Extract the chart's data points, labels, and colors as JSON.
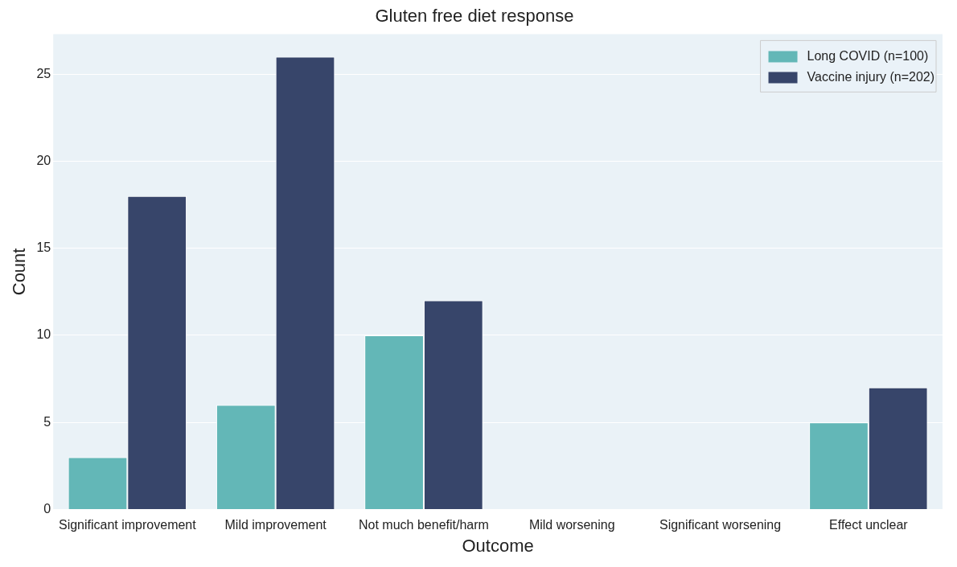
{
  "chart_data": {
    "type": "bar",
    "title": "Gluten free diet response",
    "xlabel": "Outcome",
    "ylabel": "Count",
    "categories": [
      "Significant improvement",
      "Mild improvement",
      "Not much benefit/harm",
      "Mild worsening",
      "Significant worsening",
      "Effect unclear"
    ],
    "series": [
      {
        "name": "Long COVID (n=100)",
        "color": "#63b7b7",
        "values": [
          3,
          6,
          10,
          0,
          0,
          5
        ]
      },
      {
        "name": "Vaccine injury (n=202)",
        "color": "#37456a",
        "values": [
          18,
          26,
          12,
          0,
          0,
          7
        ]
      }
    ],
    "ylim": [
      0,
      27.3
    ],
    "yticks": [
      0,
      5,
      10,
      15,
      20,
      25
    ],
    "grid": "y",
    "legend": "top right"
  }
}
